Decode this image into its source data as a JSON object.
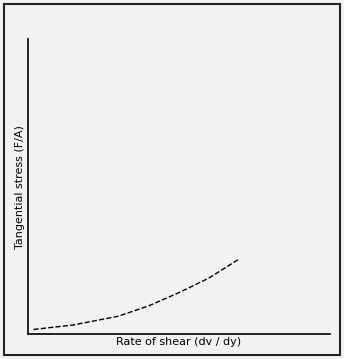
{
  "chart_data": {
    "type": "line",
    "x_label": "Rate of shear (dv / dy)",
    "y_label": "Tangential stress (F/A)",
    "x": [
      0.2,
      1.5,
      3.0,
      4.0,
      5.0,
      6.0,
      7.0
    ],
    "values": [
      0.15,
      0.3,
      0.6,
      0.95,
      1.4,
      1.9,
      2.55
    ],
    "color": "#000000",
    "line_style": "dashed",
    "xlim": [
      0,
      10
    ],
    "ylim": [
      0,
      10
    ],
    "tick_labels": false,
    "grid": false
  }
}
